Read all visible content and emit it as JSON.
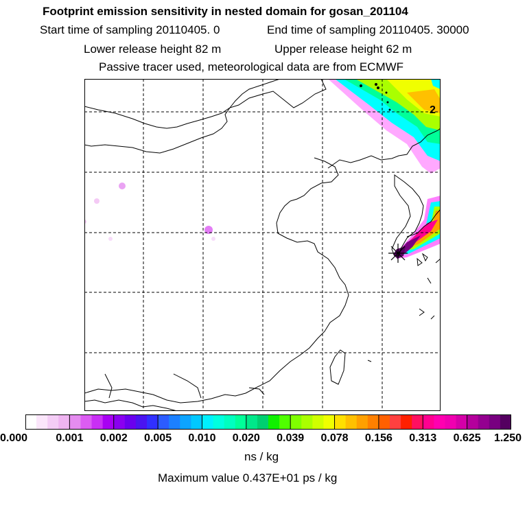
{
  "header": {
    "title": "Footprint emission sensitivity in nested domain for gosan_201104",
    "line2_start": "Start time of sampling 20110405.     0",
    "line2_end": "End time of sampling 20110405. 30000",
    "line3_lower": "Lower release height   82 m",
    "line3_upper": "Upper release height   62 m",
    "line4": "Passive tracer used, meteorological data are from ECMWF"
  },
  "map": {
    "grid_label": "2",
    "colors": {
      "coast": "#000000",
      "grid": "#000000"
    }
  },
  "colorbar": {
    "tick_labels": [
      "0.000",
      "0.001",
      "0.002",
      "0.005",
      "0.010",
      "0.020",
      "0.039",
      "0.078",
      "0.156",
      "0.313",
      "0.625",
      "1.250"
    ],
    "colors": [
      "#ffffff",
      "#fbe6fb",
      "#f4cdf6",
      "#efb4f1",
      "#e58cf0",
      "#dc5cf3",
      "#c92ff5",
      "#a800f3",
      "#8a00f0",
      "#6a00ee",
      "#4a14f0",
      "#3030ff",
      "#2c5cff",
      "#1c80ff",
      "#0ca4ff",
      "#00c8ff",
      "#00f0ff",
      "#00ffe0",
      "#00ffc0",
      "#00ff99",
      "#00e88a",
      "#00d070",
      "#10f000",
      "#50ff00",
      "#80ff00",
      "#aaff00",
      "#d0ff00",
      "#f0ff00",
      "#ffe000",
      "#ffc000",
      "#ffa000",
      "#ff8000",
      "#ff6000",
      "#ff4040",
      "#ff2000",
      "#ff1060",
      "#ff0090",
      "#ff00b0",
      "#f000b0",
      "#d400a8",
      "#b4009c",
      "#940090",
      "#780080",
      "#540060"
    ],
    "unit": "ns / kg"
  },
  "footer": {
    "max_value": "Maximum value  0.437E+01 ps / kg"
  }
}
